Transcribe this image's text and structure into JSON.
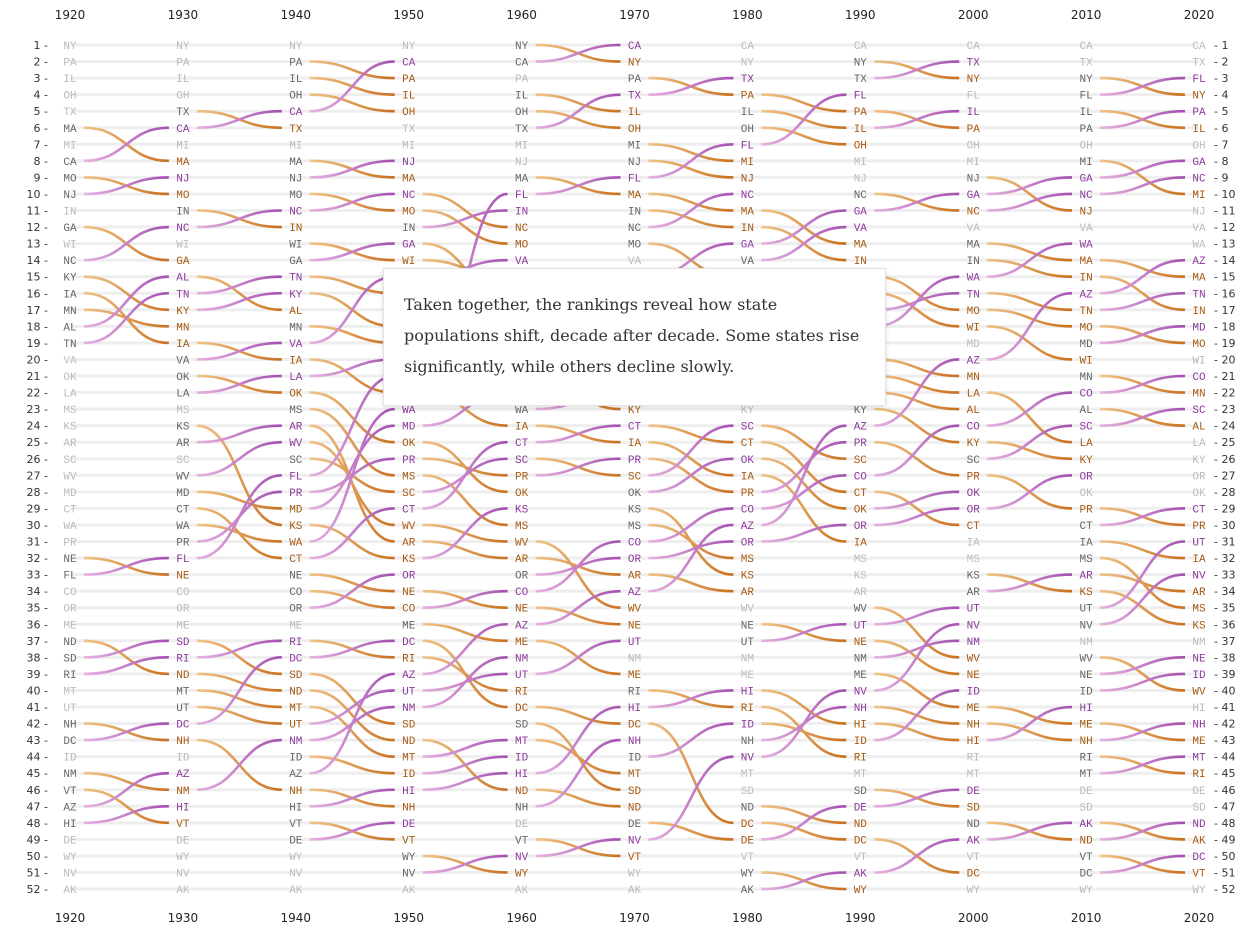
{
  "chart_data": {
    "type": "bump",
    "x": [
      1920,
      1930,
      1940,
      1950,
      1960,
      1970,
      1980,
      1990,
      2000,
      2010,
      2020
    ],
    "rank_range": [
      1,
      52
    ],
    "colors": {
      "rising": "#a34fb0",
      "falling": "#c96f1e",
      "unchanged": "#bbbbbb",
      "guide": "#eeeeee"
    },
    "rankings": [
      [
        "NY",
        "PA",
        "IL",
        "OH",
        "TX",
        "MA",
        "MI",
        "CA",
        "MO",
        "NJ",
        "IN",
        "GA",
        "WI",
        "NC",
        "KY",
        "IA",
        "MN",
        "AL",
        "TN",
        "VA",
        "OK",
        "LA",
        "MS",
        "KS",
        "AR",
        "SC",
        "WV",
        "MD",
        "CT",
        "WA",
        "PR",
        "NE",
        "FL",
        "CO",
        "OR",
        "ME",
        "ND",
        "SD",
        "RI",
        "MT",
        "UT",
        "NH",
        "DC",
        "ID",
        "NM",
        "VT",
        "AZ",
        "HI",
        "DE",
        "WY",
        "NV",
        "AK"
      ],
      [
        "NY",
        "PA",
        "IL",
        "OH",
        "TX",
        "CA",
        "MI",
        "MA",
        "NJ",
        "MO",
        "IN",
        "NC",
        "WI",
        "GA",
        "AL",
        "TN",
        "KY",
        "MN",
        "IA",
        "VA",
        "OK",
        "LA",
        "MS",
        "KS",
        "AR",
        "SC",
        "WV",
        "MD",
        "CT",
        "WA",
        "PR",
        "FL",
        "NE",
        "CO",
        "OR",
        "ME",
        "SD",
        "RI",
        "ND",
        "MT",
        "UT",
        "DC",
        "NH",
        "ID",
        "AZ",
        "NM",
        "HI",
        "VT",
        "DE",
        "WY",
        "NV",
        "AK"
      ],
      [
        "NY",
        "PA",
        "IL",
        "OH",
        "CA",
        "TX",
        "MI",
        "MA",
        "NJ",
        "MO",
        "NC",
        "IN",
        "WI",
        "GA",
        "TN",
        "KY",
        "AL",
        "MN",
        "VA",
        "IA",
        "LA",
        "OK",
        "MS",
        "AR",
        "WV",
        "SC",
        "FL",
        "PR",
        "MD",
        "KS",
        "WA",
        "CT",
        "NE",
        "CO",
        "OR",
        "ME",
        "RI",
        "DC",
        "SD",
        "ND",
        "MT",
        "UT",
        "NM",
        "ID",
        "AZ",
        "NH",
        "HI",
        "VT",
        "DE",
        "WY",
        "NV",
        "AK"
      ],
      [
        "NY",
        "CA",
        "PA",
        "IL",
        "OH",
        "TX",
        "MI",
        "NJ",
        "MA",
        "NC",
        "MO",
        "IN",
        "GA",
        "WI",
        "VA",
        "TN",
        "AL",
        "KY",
        "MN",
        "LA",
        "FL",
        "IA",
        "WA",
        "MD",
        "OK",
        "PR",
        "MS",
        "SC",
        "CT",
        "WV",
        "AR",
        "KS",
        "OR",
        "NE",
        "CO",
        "ME",
        "DC",
        "RI",
        "AZ",
        "UT",
        "NM",
        "SD",
        "ND",
        "MT",
        "ID",
        "HI",
        "NH",
        "DE",
        "VT",
        "WY",
        "NV",
        "AK"
      ],
      [
        "NY",
        "CA",
        "PA",
        "IL",
        "OH",
        "TX",
        "MI",
        "NJ",
        "MA",
        "FL",
        "IN",
        "NC",
        "MO",
        "VA",
        "WI",
        "GA",
        "TN",
        "MN",
        "AL",
        "LA",
        "KY",
        "MD",
        "WA",
        "IA",
        "CT",
        "SC",
        "PR",
        "OK",
        "KS",
        "MS",
        "WV",
        "AR",
        "OR",
        "CO",
        "NE",
        "AZ",
        "ME",
        "NM",
        "UT",
        "RI",
        "DC",
        "SD",
        "MT",
        "ID",
        "HI",
        "ND",
        "NH",
        "DE",
        "VT",
        "NV",
        "WY",
        "AK"
      ],
      [
        "CA",
        "NY",
        "PA",
        "TX",
        "IL",
        "OH",
        "MI",
        "NJ",
        "FL",
        "MA",
        "IN",
        "NC",
        "MO",
        "VA",
        "GA",
        "WI",
        "TN",
        "MD",
        "MN",
        "LA",
        "AL",
        "WA",
        "KY",
        "CT",
        "IA",
        "PR",
        "SC",
        "OK",
        "KS",
        "MS",
        "CO",
        "OR",
        "AR",
        "AZ",
        "WV",
        "NE",
        "UT",
        "NM",
        "ME",
        "RI",
        "HI",
        "DC",
        "NH",
        "ID",
        "MT",
        "SD",
        "ND",
        "DE",
        "NV",
        "VT",
        "WY",
        "AK"
      ],
      [
        "CA",
        "NY",
        "TX",
        "PA",
        "IL",
        "OH",
        "FL",
        "MI",
        "NJ",
        "NC",
        "MA",
        "IN",
        "GA",
        "VA",
        "MO",
        "WI",
        "TN",
        "MD",
        "LA",
        "WA",
        "MN",
        "AL",
        "KY",
        "SC",
        "CT",
        "OK",
        "IA",
        "PR",
        "CO",
        "AZ",
        "OR",
        "MS",
        "KS",
        "AR",
        "WV",
        "NE",
        "UT",
        "NM",
        "ME",
        "HI",
        "RI",
        "ID",
        "NH",
        "NV",
        "MT",
        "SD",
        "ND",
        "DC",
        "DE",
        "VT",
        "WY",
        "AK"
      ],
      [
        "CA",
        "NY",
        "TX",
        "FL",
        "PA",
        "IL",
        "OH",
        "MI",
        "NJ",
        "NC",
        "GA",
        "VA",
        "MA",
        "IN",
        "MO",
        "WI",
        "TN",
        "WA",
        "MD",
        "MN",
        "LA",
        "AL",
        "KY",
        "AZ",
        "PR",
        "SC",
        "CO",
        "CT",
        "OK",
        "OR",
        "IA",
        "MS",
        "KS",
        "AR",
        "WV",
        "UT",
        "NE",
        "NM",
        "ME",
        "NV",
        "NH",
        "HI",
        "ID",
        "RI",
        "MT",
        "SD",
        "DE",
        "ND",
        "DC",
        "VT",
        "AK",
        "WY"
      ],
      [
        "CA",
        "TX",
        "NY",
        "FL",
        "IL",
        "PA",
        "OH",
        "MI",
        "NJ",
        "GA",
        "NC",
        "VA",
        "MA",
        "IN",
        "WA",
        "TN",
        "MO",
        "WI",
        "MD",
        "AZ",
        "MN",
        "LA",
        "AL",
        "CO",
        "KY",
        "SC",
        "PR",
        "OK",
        "OR",
        "CT",
        "IA",
        "MS",
        "KS",
        "AR",
        "UT",
        "NV",
        "NM",
        "WV",
        "NE",
        "ID",
        "ME",
        "NH",
        "HI",
        "RI",
        "MT",
        "DE",
        "SD",
        "ND",
        "AK",
        "VT",
        "DC",
        "WY"
      ],
      [
        "CA",
        "TX",
        "NY",
        "FL",
        "IL",
        "PA",
        "OH",
        "MI",
        "GA",
        "NC",
        "NJ",
        "VA",
        "WA",
        "MA",
        "IN",
        "AZ",
        "TN",
        "MO",
        "MD",
        "WI",
        "MN",
        "CO",
        "AL",
        "SC",
        "LA",
        "KY",
        "OR",
        "OK",
        "PR",
        "CT",
        "IA",
        "MS",
        "AR",
        "KS",
        "UT",
        "NV",
        "NM",
        "WV",
        "NE",
        "ID",
        "HI",
        "ME",
        "NH",
        "RI",
        "MT",
        "DE",
        "SD",
        "AK",
        "ND",
        "VT",
        "DC",
        "WY"
      ],
      [
        "CA",
        "TX",
        "FL",
        "NY",
        "PA",
        "IL",
        "OH",
        "GA",
        "NC",
        "MI",
        "NJ",
        "VA",
        "WA",
        "AZ",
        "MA",
        "TN",
        "IN",
        "MD",
        "MO",
        "WI",
        "CO",
        "MN",
        "SC",
        "AL",
        "LA",
        "KY",
        "OR",
        "OK",
        "CT",
        "PR",
        "UT",
        "IA",
        "NV",
        "AR",
        "MS",
        "KS",
        "NM",
        "NE",
        "ID",
        "WV",
        "HI",
        "NH",
        "ME",
        "MT",
        "RI",
        "DE",
        "SD",
        "ND",
        "AK",
        "DC",
        "VT",
        "WY"
      ]
    ]
  },
  "tooltip": {
    "text": "Taken together, the rankings reveal how state populations shift, decade after decade. Some states rise significantly, while others decline slowly."
  }
}
